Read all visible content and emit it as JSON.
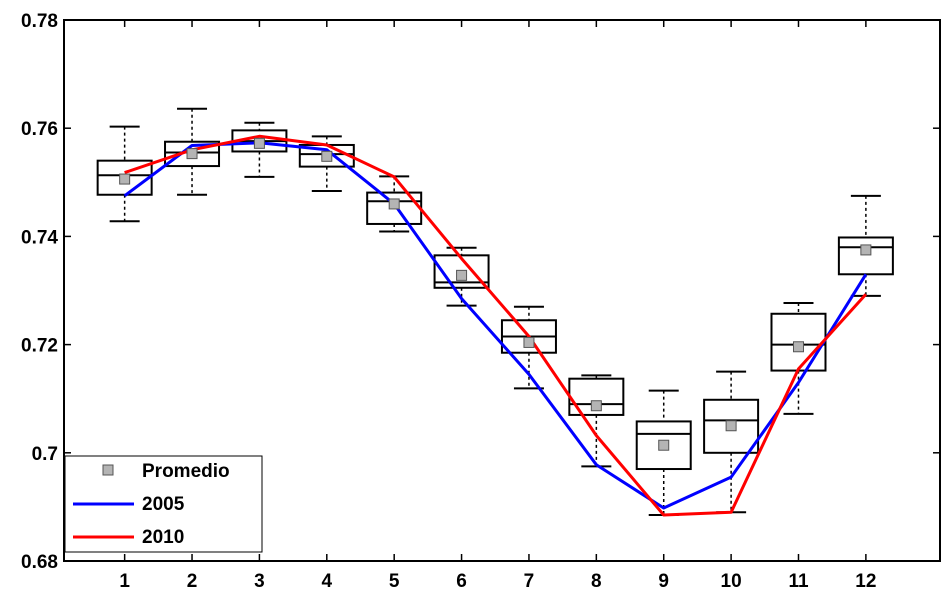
{
  "chart_data": {
    "type": "boxplot",
    "x": [
      1,
      2,
      3,
      4,
      5,
      6,
      7,
      8,
      9,
      10,
      11,
      12
    ],
    "xticks": [
      "1",
      "2",
      "3",
      "4",
      "5",
      "6",
      "7",
      "8",
      "9",
      "10",
      "11",
      "12"
    ],
    "xlim": [
      0.1,
      13.1
    ],
    "ylim": [
      0.68,
      0.78
    ],
    "yticks": [
      0.68,
      0.7,
      0.72,
      0.74,
      0.76,
      0.78
    ],
    "ytick_labels": [
      "0.68",
      "0.7",
      "0.72",
      "0.74",
      "0.76",
      "0.78"
    ],
    "boxes": [
      {
        "x": 1,
        "whisker_low": 0.7428,
        "q1": 0.7477,
        "median": 0.7513,
        "q3": 0.754,
        "whisker_high": 0.7603
      },
      {
        "x": 2,
        "whisker_low": 0.7477,
        "q1": 0.753,
        "median": 0.7555,
        "q3": 0.7575,
        "whisker_high": 0.7636
      },
      {
        "x": 3,
        "whisker_low": 0.751,
        "q1": 0.7557,
        "median": 0.7576,
        "q3": 0.7596,
        "whisker_high": 0.761
      },
      {
        "x": 4,
        "whisker_low": 0.7484,
        "q1": 0.7529,
        "median": 0.7552,
        "q3": 0.7569,
        "whisker_high": 0.7585
      },
      {
        "x": 5,
        "whisker_low": 0.7409,
        "q1": 0.7423,
        "median": 0.7465,
        "q3": 0.7481,
        "whisker_high": 0.7511
      },
      {
        "x": 6,
        "whisker_low": 0.7272,
        "q1": 0.7305,
        "median": 0.7315,
        "q3": 0.7365,
        "whisker_high": 0.7379
      },
      {
        "x": 7,
        "whisker_low": 0.7119,
        "q1": 0.7185,
        "median": 0.7215,
        "q3": 0.7245,
        "whisker_high": 0.727
      },
      {
        "x": 8,
        "whisker_low": 0.6975,
        "q1": 0.707,
        "median": 0.709,
        "q3": 0.7137,
        "whisker_high": 0.7143
      },
      {
        "x": 9,
        "whisker_low": 0.6885,
        "q1": 0.697,
        "median": 0.7035,
        "q3": 0.7058,
        "whisker_high": 0.7115
      },
      {
        "x": 10,
        "whisker_low": 0.689,
        "q1": 0.7,
        "median": 0.706,
        "q3": 0.7098,
        "whisker_high": 0.715
      },
      {
        "x": 11,
        "whisker_low": 0.7072,
        "q1": 0.7152,
        "median": 0.72,
        "q3": 0.7257,
        "whisker_high": 0.7277
      },
      {
        "x": 12,
        "whisker_low": 0.729,
        "q1": 0.733,
        "median": 0.738,
        "q3": 0.7398,
        "whisker_high": 0.7475
      }
    ],
    "series": [
      {
        "name": "Promedio",
        "marker": "square",
        "color": "#b4b4b4",
        "values": [
          0.7506,
          0.7553,
          0.7572,
          0.7548,
          0.746,
          0.7328,
          0.7204,
          0.7087,
          0.7014,
          0.705,
          0.7196,
          0.7375
        ]
      },
      {
        "name": "2005",
        "color": "#0000ff",
        "values": [
          0.7475,
          0.7568,
          0.7573,
          0.756,
          0.746,
          0.7285,
          0.7145,
          0.6978,
          0.6898,
          0.6955,
          0.713,
          0.733
        ]
      },
      {
        "name": "2010",
        "color": "#ff0000",
        "values": [
          0.7518,
          0.756,
          0.7585,
          0.7569,
          0.751,
          0.7359,
          0.7215,
          0.7032,
          0.6885,
          0.689,
          0.7155,
          0.7293
        ]
      }
    ],
    "legend": {
      "position": "bottom-left",
      "entries": [
        "Promedio",
        "2005",
        "2010"
      ]
    },
    "grid": false
  }
}
